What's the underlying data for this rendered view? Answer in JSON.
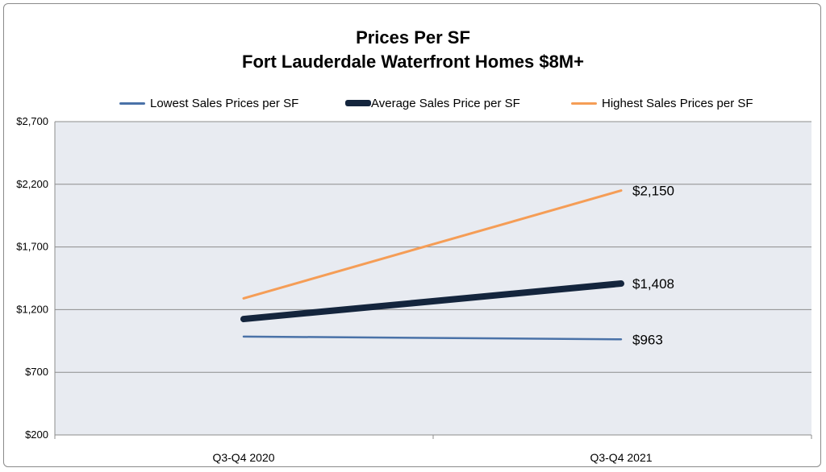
{
  "chart_data": {
    "type": "line",
    "title": "Prices Per SF",
    "subtitle": "Fort Lauderdale Waterfront Homes $8M+",
    "xlabel": "",
    "ylabel": "",
    "categories": [
      "Q3-Q4 2020",
      "Q3-Q4 2021"
    ],
    "ylim": [
      200,
      2700
    ],
    "yticks": [
      200,
      700,
      1200,
      1700,
      2200,
      2700
    ],
    "ytick_labels": [
      "$200",
      "$700",
      "$1,200",
      "$1,700",
      "$2,200",
      "$2,700"
    ],
    "grid": true,
    "legend_position": "top",
    "series": [
      {
        "name": "Lowest Sales Prices per SF",
        "values": [
          985,
          963
        ],
        "color": "#4a72a8",
        "data_label": "$963"
      },
      {
        "name": "Average Sales Price per SF",
        "values": [
          1125,
          1408
        ],
        "color": "#14253d",
        "data_label": "$1,408"
      },
      {
        "name": "Highest Sales Prices per SF",
        "values": [
          1290,
          2150
        ],
        "color": "#f59d56",
        "data_label": "$2,150"
      }
    ]
  },
  "colors": {
    "plot_background": "#e8ebf1",
    "grid": "#8c8c8c"
  }
}
